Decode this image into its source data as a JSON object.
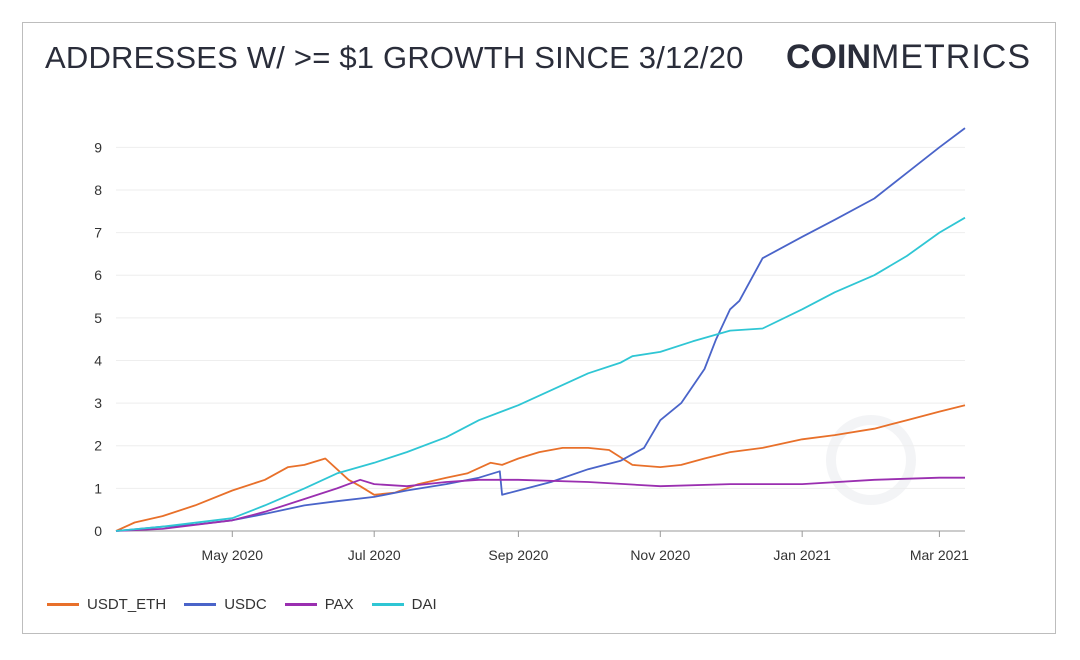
{
  "title": "ADDRESSES W/ >= $1 GROWTH SINCE 3/12/20",
  "logo": {
    "bold": "COIN",
    "light": "METRICS"
  },
  "chart_data": {
    "type": "line",
    "title": "ADDRESSES W/ >= $1 GROWTH SINCE 3/12/20",
    "xlabel": "",
    "ylabel": "",
    "xlim": [
      "2020-03-12",
      "2021-03-12"
    ],
    "ylim": [
      0,
      9.5
    ],
    "yticks": [
      0,
      1,
      2,
      3,
      4,
      5,
      6,
      7,
      8,
      9
    ],
    "xticks": [
      {
        "date": "2020-05-01",
        "label": "May 2020"
      },
      {
        "date": "2020-07-01",
        "label": "Jul 2020"
      },
      {
        "date": "2020-09-01",
        "label": "Sep 2020"
      },
      {
        "date": "2020-11-01",
        "label": "Nov 2020"
      },
      {
        "date": "2021-01-01",
        "label": "Jan 2021"
      },
      {
        "date": "2021-03-01",
        "label": "Mar 2021"
      }
    ],
    "grid": true,
    "legend_position": "bottom-left",
    "series": [
      {
        "name": "USDT_ETH",
        "color": "#e8702a",
        "x": [
          "2020-03-12",
          "2020-03-20",
          "2020-04-01",
          "2020-04-15",
          "2020-05-01",
          "2020-05-15",
          "2020-05-25",
          "2020-06-01",
          "2020-06-10",
          "2020-06-20",
          "2020-06-25",
          "2020-07-01",
          "2020-07-10",
          "2020-07-20",
          "2020-08-01",
          "2020-08-10",
          "2020-08-20",
          "2020-08-25",
          "2020-09-01",
          "2020-09-10",
          "2020-09-20",
          "2020-10-01",
          "2020-10-10",
          "2020-10-20",
          "2020-11-01",
          "2020-11-10",
          "2020-11-20",
          "2020-12-01",
          "2020-12-15",
          "2021-01-01",
          "2021-01-15",
          "2021-02-01",
          "2021-02-15",
          "2021-03-01",
          "2021-03-12"
        ],
        "y": [
          0.0,
          0.2,
          0.35,
          0.6,
          0.95,
          1.2,
          1.5,
          1.55,
          1.7,
          1.2,
          1.05,
          0.85,
          0.9,
          1.1,
          1.25,
          1.35,
          1.6,
          1.55,
          1.7,
          1.85,
          1.95,
          1.95,
          1.9,
          1.55,
          1.5,
          1.55,
          1.7,
          1.85,
          1.95,
          2.15,
          2.25,
          2.4,
          2.6,
          2.8,
          2.95
        ]
      },
      {
        "name": "USDC",
        "color": "#4a64c9",
        "x": [
          "2020-03-12",
          "2020-04-01",
          "2020-04-15",
          "2020-05-01",
          "2020-05-15",
          "2020-06-01",
          "2020-06-15",
          "2020-07-01",
          "2020-07-15",
          "2020-08-01",
          "2020-08-15",
          "2020-08-24",
          "2020-08-25",
          "2020-09-01",
          "2020-09-15",
          "2020-10-01",
          "2020-10-15",
          "2020-10-25",
          "2020-11-01",
          "2020-11-10",
          "2020-11-20",
          "2020-11-25",
          "2020-12-01",
          "2020-12-05",
          "2020-12-15",
          "2021-01-01",
          "2021-01-15",
          "2021-02-01",
          "2021-02-15",
          "2021-03-01",
          "2021-03-12"
        ],
        "y": [
          0.0,
          0.1,
          0.15,
          0.25,
          0.4,
          0.6,
          0.7,
          0.8,
          0.95,
          1.1,
          1.25,
          1.4,
          0.85,
          0.95,
          1.15,
          1.45,
          1.65,
          1.95,
          2.6,
          3.0,
          3.8,
          4.5,
          5.2,
          5.4,
          6.4,
          6.9,
          7.3,
          7.8,
          8.4,
          9.0,
          9.45
        ]
      },
      {
        "name": "PAX",
        "color": "#9a2fb0",
        "x": [
          "2020-03-12",
          "2020-04-01",
          "2020-05-01",
          "2020-05-15",
          "2020-06-01",
          "2020-06-15",
          "2020-06-25",
          "2020-07-01",
          "2020-07-15",
          "2020-08-01",
          "2020-08-15",
          "2020-09-01",
          "2020-10-01",
          "2020-11-01",
          "2020-12-01",
          "2021-01-01",
          "2021-02-01",
          "2021-03-01",
          "2021-03-12"
        ],
        "y": [
          0.0,
          0.05,
          0.25,
          0.45,
          0.75,
          1.0,
          1.2,
          1.1,
          1.05,
          1.15,
          1.2,
          1.2,
          1.15,
          1.05,
          1.1,
          1.1,
          1.2,
          1.25,
          1.25
        ]
      },
      {
        "name": "DAI",
        "color": "#2fc6d4",
        "x": [
          "2020-03-12",
          "2020-04-01",
          "2020-05-01",
          "2020-05-15",
          "2020-06-01",
          "2020-06-15",
          "2020-07-01",
          "2020-07-15",
          "2020-08-01",
          "2020-08-15",
          "2020-09-01",
          "2020-09-15",
          "2020-10-01",
          "2020-10-15",
          "2020-10-20",
          "2020-11-01",
          "2020-11-15",
          "2020-12-01",
          "2020-12-15",
          "2021-01-01",
          "2021-01-15",
          "2021-02-01",
          "2021-02-15",
          "2021-03-01",
          "2021-03-12"
        ],
        "y": [
          0.0,
          0.1,
          0.3,
          0.6,
          1.0,
          1.35,
          1.6,
          1.85,
          2.2,
          2.6,
          2.95,
          3.3,
          3.7,
          3.95,
          4.1,
          4.2,
          4.45,
          4.7,
          4.75,
          5.2,
          5.6,
          6.0,
          6.45,
          7.0,
          7.35
        ]
      }
    ]
  }
}
